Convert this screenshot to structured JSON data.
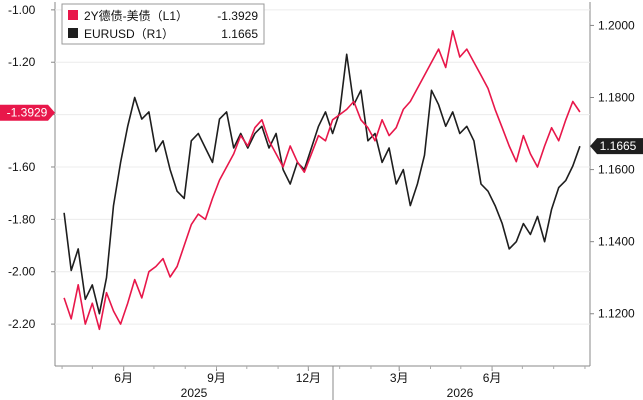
{
  "chart_data": {
    "type": "line",
    "x_ticks": [
      "6月",
      "9月",
      "12月",
      "3月",
      "6月"
    ],
    "year_labels": [
      "2025",
      "2026"
    ],
    "left_axis": {
      "ticks": [
        "-1.00",
        "-1.20",
        "-1.40",
        "-1.60",
        "-1.80",
        "-2.00",
        "-2.20"
      ],
      "ylim": [
        -2.36,
        -0.97
      ]
    },
    "right_axis": {
      "ticks": [
        "1.2000",
        "1.1800",
        "1.1600",
        "1.1400",
        "1.1200"
      ],
      "ylim": [
        1.1055,
        1.2065
      ]
    },
    "legend": [
      {
        "label": "2Y德债-美债（L1）",
        "value": "-1.3929",
        "color": "#e8174a"
      },
      {
        "label": "EURUSD（R1）",
        "value": "1.1665",
        "color": "#1e1e1e"
      }
    ],
    "last_value_badges": {
      "left": "-1.3929",
      "right": "1.1665"
    },
    "series": [
      {
        "name": "2Y德债-美债（L1）",
        "axis": "left",
        "color": "#e8174a",
        "x": [
          "2025-04-03",
          "2025-04-10",
          "2025-04-17",
          "2025-04-24",
          "2025-05-01",
          "2025-05-08",
          "2025-05-15",
          "2025-05-22",
          "2025-05-29",
          "2025-06-05",
          "2025-06-12",
          "2025-06-19",
          "2025-06-26",
          "2025-07-03",
          "2025-07-10",
          "2025-07-17",
          "2025-07-24",
          "2025-07-31",
          "2025-08-07",
          "2025-08-14",
          "2025-08-21",
          "2025-08-28",
          "2025-09-04",
          "2025-09-11",
          "2025-09-18",
          "2025-09-25",
          "2025-10-02",
          "2025-10-09",
          "2025-10-16",
          "2025-10-23",
          "2025-10-30",
          "2025-11-06",
          "2025-11-13",
          "2025-11-20",
          "2025-11-27",
          "2025-12-04",
          "2025-12-11",
          "2025-12-18",
          "2025-12-25",
          "2026-01-01",
          "2026-01-08",
          "2026-01-15",
          "2026-01-22",
          "2026-01-29",
          "2026-02-05",
          "2026-02-12",
          "2026-02-19",
          "2026-02-26",
          "2026-03-05",
          "2026-03-12",
          "2026-03-19",
          "2026-03-26",
          "2026-04-02",
          "2026-04-09",
          "2026-04-16",
          "2026-04-23",
          "2026-04-30",
          "2026-05-07",
          "2026-05-14",
          "2026-05-21",
          "2026-05-28",
          "2026-06-04",
          "2026-06-11",
          "2026-06-18",
          "2026-06-25",
          "2026-07-02",
          "2026-07-09",
          "2026-07-16",
          "2026-07-23",
          "2026-07-30",
          "2026-08-06",
          "2026-08-13",
          "2026-08-20",
          "2026-08-27"
        ],
        "values": [
          -2.1,
          -2.18,
          -2.05,
          -2.2,
          -2.12,
          -2.22,
          -2.08,
          -2.15,
          -2.2,
          -2.12,
          -2.03,
          -2.1,
          -2.0,
          -1.98,
          -1.95,
          -2.02,
          -1.98,
          -1.9,
          -1.82,
          -1.78,
          -1.8,
          -1.72,
          -1.65,
          -1.6,
          -1.55,
          -1.48,
          -1.52,
          -1.45,
          -1.42,
          -1.5,
          -1.55,
          -1.6,
          -1.52,
          -1.58,
          -1.62,
          -1.55,
          -1.48,
          -1.5,
          -1.42,
          -1.4,
          -1.38,
          -1.35,
          -1.42,
          -1.45,
          -1.5,
          -1.42,
          -1.48,
          -1.45,
          -1.38,
          -1.35,
          -1.3,
          -1.25,
          -1.2,
          -1.15,
          -1.22,
          -1.08,
          -1.18,
          -1.15,
          -1.2,
          -1.25,
          -1.3,
          -1.38,
          -1.45,
          -1.52,
          -1.58,
          -1.48,
          -1.55,
          -1.6,
          -1.52,
          -1.45,
          -1.5,
          -1.42,
          -1.35,
          -1.39
        ]
      },
      {
        "name": "EURUSD（R1）",
        "axis": "right",
        "color": "#1e1e1e",
        "x": [
          "2025-04-03",
          "2025-04-10",
          "2025-04-17",
          "2025-04-24",
          "2025-05-01",
          "2025-05-08",
          "2025-05-15",
          "2025-05-22",
          "2025-05-29",
          "2025-06-05",
          "2025-06-12",
          "2025-06-19",
          "2025-06-26",
          "2025-07-03",
          "2025-07-10",
          "2025-07-17",
          "2025-07-24",
          "2025-07-31",
          "2025-08-07",
          "2025-08-14",
          "2025-08-21",
          "2025-08-28",
          "2025-09-04",
          "2025-09-11",
          "2025-09-18",
          "2025-09-25",
          "2025-10-02",
          "2025-10-09",
          "2025-10-16",
          "2025-10-23",
          "2025-10-30",
          "2025-11-06",
          "2025-11-13",
          "2025-11-20",
          "2025-11-27",
          "2025-12-04",
          "2025-12-11",
          "2025-12-18",
          "2025-12-25",
          "2026-01-01",
          "2026-01-08",
          "2026-01-15",
          "2026-01-22",
          "2026-01-29",
          "2026-02-05",
          "2026-02-12",
          "2026-02-19",
          "2026-02-26",
          "2026-03-05",
          "2026-03-12",
          "2026-03-19",
          "2026-03-26",
          "2026-04-02",
          "2026-04-09",
          "2026-04-16",
          "2026-04-23",
          "2026-04-30",
          "2026-05-07",
          "2026-05-14",
          "2026-05-21",
          "2026-05-28",
          "2026-06-04",
          "2026-06-11",
          "2026-06-18",
          "2026-06-25",
          "2026-07-02",
          "2026-07-09",
          "2026-07-16",
          "2026-07-23",
          "2026-07-30",
          "2026-08-06",
          "2026-08-13",
          "2026-08-20",
          "2026-08-27"
        ],
        "values": [
          1.148,
          1.132,
          1.138,
          1.124,
          1.128,
          1.12,
          1.13,
          1.15,
          1.162,
          1.172,
          1.18,
          1.174,
          1.176,
          1.165,
          1.168,
          1.16,
          1.154,
          1.152,
          1.168,
          1.17,
          1.166,
          1.162,
          1.174,
          1.176,
          1.166,
          1.17,
          1.166,
          1.17,
          1.172,
          1.166,
          1.17,
          1.16,
          1.156,
          1.162,
          1.16,
          1.166,
          1.172,
          1.176,
          1.17,
          1.176,
          1.192,
          1.178,
          1.182,
          1.168,
          1.17,
          1.162,
          1.166,
          1.156,
          1.16,
          1.15,
          1.156,
          1.164,
          1.182,
          1.178,
          1.172,
          1.176,
          1.17,
          1.172,
          1.168,
          1.156,
          1.154,
          1.15,
          1.145,
          1.138,
          1.14,
          1.145,
          1.142,
          1.147,
          1.14,
          1.149,
          1.155,
          1.157,
          1.161,
          1.1665
        ]
      }
    ]
  }
}
